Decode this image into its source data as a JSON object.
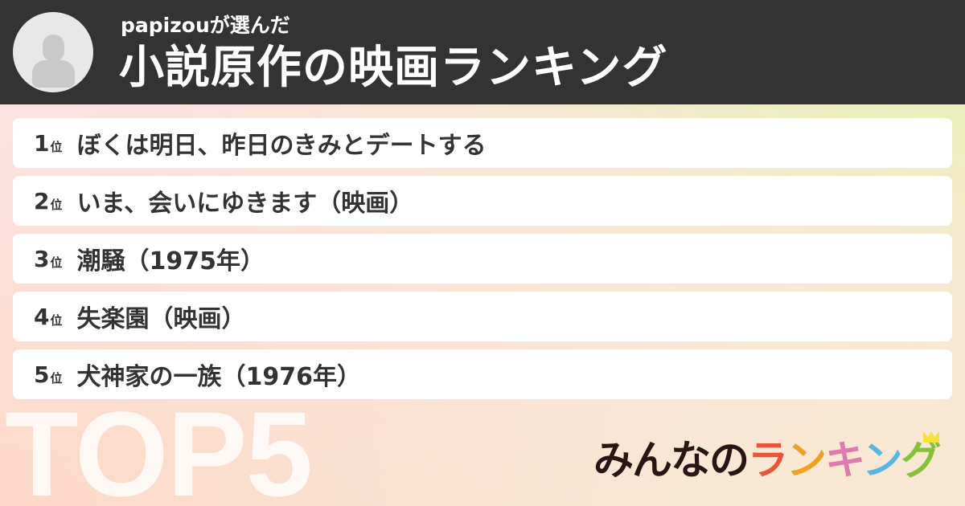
{
  "header": {
    "subtitle": "papizouが選んだ",
    "title": "小説原作の映画ランキング",
    "avatar_icon": "user-silhouette-icon"
  },
  "ranking": [
    {
      "rank": "1",
      "suffix": "位",
      "name": "ぼくは明日、昨日のきみとデートする"
    },
    {
      "rank": "2",
      "suffix": "位",
      "name": "いま、会いにゆきます（映画）"
    },
    {
      "rank": "3",
      "suffix": "位",
      "name": "潮騒（1975年）"
    },
    {
      "rank": "4",
      "suffix": "位",
      "name": "失楽園（映画）"
    },
    {
      "rank": "5",
      "suffix": "位",
      "name": "犬神家の一族（1976年）"
    }
  ],
  "footer": {
    "top_label": "TOP5",
    "logo": {
      "dark": "みんなの",
      "c1": "ラ",
      "c2": "ン",
      "c3": "キ",
      "c4": "ン",
      "c5": "グ"
    }
  },
  "colors": {
    "header_bg": "#333333",
    "logo_red": "#e4553a",
    "logo_orange": "#eea021",
    "logo_pink": "#dd7bae",
    "logo_blue": "#56b8df",
    "logo_green": "#86c13a"
  }
}
